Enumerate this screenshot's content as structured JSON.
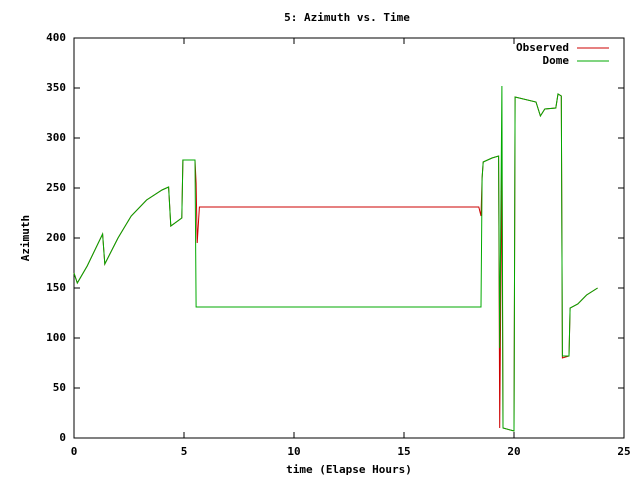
{
  "chart_data": {
    "type": "line",
    "title": "5: Azimuth vs. Time",
    "xlabel": "time (Elapse Hours)",
    "ylabel": "Azimuth",
    "x": [
      0,
      0.15,
      0.6,
      1.3,
      1.4,
      2.0,
      2.6,
      3.3,
      4.0,
      4.3,
      4.4,
      4.9,
      4.95,
      5.5,
      5.55,
      5.6,
      5.7,
      18.4,
      18.5,
      18.55,
      18.6,
      19.0,
      19.3,
      19.35,
      19.45,
      19.5,
      20.0,
      20.05,
      21.0,
      21.2,
      21.4,
      21.9,
      22.0,
      22.15,
      22.2,
      22.5,
      22.55,
      22.9,
      23.3,
      23.8
    ],
    "series": [
      {
        "name": "Observed",
        "color": "#cc0000",
        "values": [
          165,
          155,
          172,
          204,
          174,
          200,
          222,
          238,
          248,
          251,
          212,
          220,
          278,
          278,
          255,
          195,
          231,
          231,
          222,
          260,
          276,
          280,
          282,
          10,
          280,
          10,
          7,
          341,
          336,
          322,
          329,
          330,
          344,
          342,
          80,
          82,
          130,
          134,
          143,
          150
        ]
      },
      {
        "name": "Dome",
        "color": "#00aa00",
        "values": [
          165,
          155,
          172,
          204,
          174,
          200,
          222,
          238,
          248,
          251,
          212,
          220,
          278,
          278,
          131,
          131,
          131,
          131,
          131,
          260,
          276,
          280,
          282,
          90,
          352,
          10,
          7,
          341,
          336,
          322,
          329,
          330,
          344,
          342,
          82,
          82,
          130,
          134,
          143,
          150
        ]
      }
    ],
    "xlim": [
      0,
      25
    ],
    "xticks": [
      0,
      5,
      10,
      15,
      20,
      25
    ],
    "ylim": [
      0,
      400
    ],
    "yticks": [
      0,
      50,
      100,
      150,
      200,
      250,
      300,
      350,
      400
    ],
    "legend": "top-right"
  }
}
